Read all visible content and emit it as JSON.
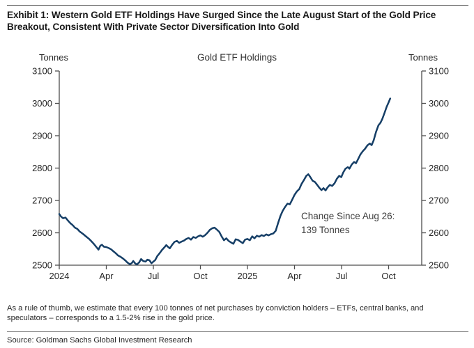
{
  "header": {
    "exhibit_title": "Exhibit 1: Western Gold ETF Holdings Have Surged Since the Late August Start of the Gold Price Breakout, Consistent With Private Sector Diversification Into Gold"
  },
  "chart_data": {
    "type": "line",
    "title": "Gold ETF Holdings",
    "left_axis_label": "Tonnes",
    "right_axis_label": "Tonnes",
    "ylim": [
      2500,
      3100
    ],
    "y_ticks": [
      "3100",
      "3000",
      "2900",
      "2800",
      "2700",
      "2600",
      "2500"
    ],
    "x_ticks": [
      {
        "label": "2024",
        "t": 0
      },
      {
        "label": "Apr",
        "t": 3
      },
      {
        "label": "Jul",
        "t": 6
      },
      {
        "label": "Oct",
        "t": 9
      },
      {
        "label": "2025",
        "t": 12
      },
      {
        "label": "Apr",
        "t": 15
      },
      {
        "label": "Jul",
        "t": 18
      },
      {
        "label": "Oct",
        "t": 21
      }
    ],
    "x_unit": "months since Jan 2024",
    "grid": false,
    "legend": "none",
    "annotation": {
      "line1": "Change Since Aug 26:",
      "line2": "139 Tonnes"
    },
    "series": [
      {
        "name": "Gold ETF Holdings (tonnes)",
        "color": "#153e66",
        "points": [
          [
            0,
            2658
          ],
          [
            0.12,
            2650
          ],
          [
            0.25,
            2645
          ],
          [
            0.4,
            2647
          ],
          [
            0.55,
            2638
          ],
          [
            0.7,
            2630
          ],
          [
            0.85,
            2624
          ],
          [
            1.0,
            2616
          ],
          [
            1.15,
            2612
          ],
          [
            1.3,
            2604
          ],
          [
            1.5,
            2597
          ],
          [
            1.7,
            2589
          ],
          [
            1.9,
            2581
          ],
          [
            2.05,
            2574
          ],
          [
            2.2,
            2566
          ],
          [
            2.35,
            2557
          ],
          [
            2.5,
            2548
          ],
          [
            2.62,
            2560
          ],
          [
            2.72,
            2563
          ],
          [
            2.85,
            2557
          ],
          [
            3.0,
            2556
          ],
          [
            3.15,
            2553
          ],
          [
            3.3,
            2549
          ],
          [
            3.45,
            2543
          ],
          [
            3.6,
            2537
          ],
          [
            3.75,
            2530
          ],
          [
            3.9,
            2526
          ],
          [
            4.05,
            2521
          ],
          [
            4.2,
            2515
          ],
          [
            4.35,
            2508
          ],
          [
            4.5,
            2503
          ],
          [
            4.62,
            2506
          ],
          [
            4.72,
            2513
          ],
          [
            4.85,
            2505
          ],
          [
            4.95,
            2502
          ],
          [
            5.1,
            2509
          ],
          [
            5.22,
            2519
          ],
          [
            5.35,
            2513
          ],
          [
            5.5,
            2511
          ],
          [
            5.62,
            2517
          ],
          [
            5.75,
            2515
          ],
          [
            5.88,
            2506
          ],
          [
            6.0,
            2511
          ],
          [
            6.12,
            2516
          ],
          [
            6.25,
            2528
          ],
          [
            6.4,
            2537
          ],
          [
            6.55,
            2547
          ],
          [
            6.7,
            2555
          ],
          [
            6.82,
            2562
          ],
          [
            6.95,
            2556
          ],
          [
            7.05,
            2552
          ],
          [
            7.2,
            2563
          ],
          [
            7.35,
            2572
          ],
          [
            7.5,
            2575
          ],
          [
            7.65,
            2569
          ],
          [
            7.8,
            2573
          ],
          [
            7.95,
            2576
          ],
          [
            8.1,
            2581
          ],
          [
            8.25,
            2584
          ],
          [
            8.4,
            2579
          ],
          [
            8.55,
            2587
          ],
          [
            8.7,
            2584
          ],
          [
            8.85,
            2589
          ],
          [
            9.0,
            2592
          ],
          [
            9.15,
            2588
          ],
          [
            9.3,
            2593
          ],
          [
            9.45,
            2600
          ],
          [
            9.6,
            2609
          ],
          [
            9.75,
            2614
          ],
          [
            9.9,
            2616
          ],
          [
            10.05,
            2610
          ],
          [
            10.2,
            2603
          ],
          [
            10.35,
            2589
          ],
          [
            10.5,
            2577
          ],
          [
            10.65,
            2583
          ],
          [
            10.8,
            2575
          ],
          [
            10.95,
            2570
          ],
          [
            11.1,
            2566
          ],
          [
            11.25,
            2580
          ],
          [
            11.4,
            2578
          ],
          [
            11.55,
            2573
          ],
          [
            11.7,
            2568
          ],
          [
            11.85,
            2579
          ],
          [
            12.0,
            2581
          ],
          [
            12.15,
            2577
          ],
          [
            12.3,
            2589
          ],
          [
            12.45,
            2583
          ],
          [
            12.6,
            2591
          ],
          [
            12.75,
            2588
          ],
          [
            12.9,
            2593
          ],
          [
            13.05,
            2590
          ],
          [
            13.2,
            2595
          ],
          [
            13.35,
            2592
          ],
          [
            13.5,
            2596
          ],
          [
            13.65,
            2598
          ],
          [
            13.8,
            2606
          ],
          [
            13.95,
            2630
          ],
          [
            14.1,
            2652
          ],
          [
            14.25,
            2668
          ],
          [
            14.4,
            2680
          ],
          [
            14.55,
            2690
          ],
          [
            14.7,
            2688
          ],
          [
            14.85,
            2702
          ],
          [
            15.0,
            2717
          ],
          [
            15.15,
            2728
          ],
          [
            15.3,
            2735
          ],
          [
            15.45,
            2751
          ],
          [
            15.6,
            2763
          ],
          [
            15.75,
            2776
          ],
          [
            15.88,
            2781
          ],
          [
            16.0,
            2773
          ],
          [
            16.15,
            2761
          ],
          [
            16.3,
            2757
          ],
          [
            16.45,
            2748
          ],
          [
            16.6,
            2738
          ],
          [
            16.72,
            2732
          ],
          [
            16.85,
            2738
          ],
          [
            16.98,
            2731
          ],
          [
            17.1,
            2740
          ],
          [
            17.25,
            2748
          ],
          [
            17.4,
            2745
          ],
          [
            17.55,
            2753
          ],
          [
            17.7,
            2767
          ],
          [
            17.85,
            2776
          ],
          [
            17.98,
            2772
          ],
          [
            18.1,
            2786
          ],
          [
            18.25,
            2798
          ],
          [
            18.4,
            2803
          ],
          [
            18.5,
            2798
          ],
          [
            18.65,
            2811
          ],
          [
            18.8,
            2819
          ],
          [
            18.92,
            2815
          ],
          [
            19.05,
            2827
          ],
          [
            19.2,
            2842
          ],
          [
            19.35,
            2852
          ],
          [
            19.5,
            2860
          ],
          [
            19.65,
            2870
          ],
          [
            19.8,
            2876
          ],
          [
            19.92,
            2871
          ],
          [
            20.05,
            2886
          ],
          [
            20.2,
            2912
          ],
          [
            20.35,
            2932
          ],
          [
            20.48,
            2940
          ],
          [
            20.6,
            2952
          ],
          [
            20.75,
            2972
          ],
          [
            20.88,
            2990
          ],
          [
            21.0,
            3003
          ],
          [
            21.1,
            3015
          ]
        ]
      }
    ]
  },
  "footer": {
    "note": "As a rule of thumb, we estimate that every 100 tonnes of net purchases by conviction holders – ETFs, central banks, and speculators – corresponds to a 1.5-2% rise in the gold price.",
    "source": "Source: Goldman Sachs Global Investment Research"
  }
}
